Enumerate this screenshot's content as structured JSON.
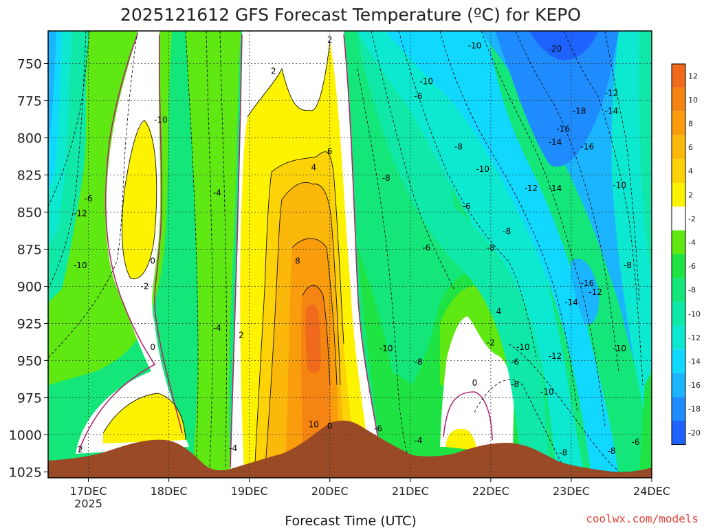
{
  "chart_data": {
    "type": "heatmap",
    "title": "2025121612 GFS Forecast Temperature (ºC) for KEPO",
    "xlabel": "Forecast Time (UTC)",
    "ylabel": "",
    "x_ticks": [
      "17DEC",
      "18DEC",
      "19DEC",
      "20DEC",
      "21DEC",
      "22DEC",
      "23DEC",
      "24DEC"
    ],
    "x_year": "2025",
    "xlim_days": [
      16.5,
      24.0
    ],
    "y_ticks": [
      750,
      775,
      800,
      825,
      850,
      875,
      900,
      925,
      950,
      975,
      1000,
      1025
    ],
    "ylim": [
      728,
      1029
    ],
    "colorbar": {
      "levels": [
        12,
        10,
        8,
        6,
        4,
        2,
        -2,
        -4,
        -6,
        -8,
        -10,
        -12,
        -14,
        -16,
        -18,
        -20
      ],
      "colors": [
        "#ef6a1c",
        "#f58412",
        "#fa9d0c",
        "#fcb80a",
        "#fdd307",
        "#fdf200",
        "#ffffff",
        "#5fe812",
        "#1fe342",
        "#14e67a",
        "#10e8a8",
        "#0de8d0",
        "#10d8ff",
        "#1bb4ff",
        "#1e8cff",
        "#1f63ff"
      ]
    },
    "contour_labels": [
      {
        "value": "2",
        "day": 20.0,
        "p": 734
      },
      {
        "value": "-10",
        "day": 21.8,
        "p": 738
      },
      {
        "value": "-20",
        "day": 22.8,
        "p": 740
      },
      {
        "value": "2",
        "day": 19.3,
        "p": 755
      },
      {
        "value": "-10",
        "day": 21.2,
        "p": 762
      },
      {
        "value": "-6",
        "day": 21.1,
        "p": 772
      },
      {
        "value": "-12",
        "day": 23.5,
        "p": 770
      },
      {
        "value": "-18",
        "day": 23.1,
        "p": 782
      },
      {
        "value": "-14",
        "day": 23.5,
        "p": 782
      },
      {
        "value": "-10",
        "day": 17.9,
        "p": 788
      },
      {
        "value": "-16",
        "day": 22.9,
        "p": 794
      },
      {
        "value": "-14",
        "day": 22.8,
        "p": 803
      },
      {
        "value": "-8",
        "day": 21.6,
        "p": 806
      },
      {
        "value": "-16",
        "day": 23.2,
        "p": 806
      },
      {
        "value": "6",
        "day": 20.0,
        "p": 809
      },
      {
        "value": "4",
        "day": 19.8,
        "p": 820
      },
      {
        "value": "-10",
        "day": 21.9,
        "p": 821
      },
      {
        "value": "-8",
        "day": 20.7,
        "p": 827
      },
      {
        "value": "-10",
        "day": 23.6,
        "p": 832
      },
      {
        "value": "-12",
        "day": 22.5,
        "p": 834
      },
      {
        "value": "-14",
        "day": 22.8,
        "p": 834
      },
      {
        "value": "-4",
        "day": 18.6,
        "p": 837
      },
      {
        "value": "-6",
        "day": 17.0,
        "p": 841
      },
      {
        "value": "-6",
        "day": 21.7,
        "p": 846
      },
      {
        "value": "-12",
        "day": 16.9,
        "p": 851
      },
      {
        "value": "-8",
        "day": 22.2,
        "p": 863
      },
      {
        "value": "-6",
        "day": 21.2,
        "p": 874
      },
      {
        "value": "-8",
        "day": 22.0,
        "p": 874
      },
      {
        "value": "8",
        "day": 19.6,
        "p": 883
      },
      {
        "value": "0",
        "day": 17.8,
        "p": 883
      },
      {
        "value": "-10",
        "day": 16.9,
        "p": 886
      },
      {
        "value": "-8",
        "day": 23.7,
        "p": 886
      },
      {
        "value": "-2",
        "day": 17.7,
        "p": 900
      },
      {
        "value": "-16",
        "day": 23.2,
        "p": 898
      },
      {
        "value": "-12",
        "day": 23.3,
        "p": 904
      },
      {
        "value": "-14",
        "day": 23.0,
        "p": 911
      },
      {
        "value": "4",
        "day": 22.1,
        "p": 917
      },
      {
        "value": "-4",
        "day": 18.6,
        "p": 928
      },
      {
        "value": "2",
        "day": 18.9,
        "p": 933
      },
      {
        "value": "-2",
        "day": 22.0,
        "p": 938
      },
      {
        "value": "0",
        "day": 17.8,
        "p": 941
      },
      {
        "value": "-10",
        "day": 20.7,
        "p": 942
      },
      {
        "value": "-10",
        "day": 22.4,
        "p": 941
      },
      {
        "value": "-10",
        "day": 23.6,
        "p": 942
      },
      {
        "value": "-12",
        "day": 22.8,
        "p": 947
      },
      {
        "value": "-8",
        "day": 21.1,
        "p": 951
      },
      {
        "value": "-6",
        "day": 22.3,
        "p": 951
      },
      {
        "value": "0",
        "day": 21.8,
        "p": 965
      },
      {
        "value": "-8",
        "day": 22.3,
        "p": 966
      },
      {
        "value": "-10",
        "day": 22.7,
        "p": 971
      },
      {
        "value": "10",
        "day": 19.8,
        "p": 993
      },
      {
        "value": "0",
        "day": 20.0,
        "p": 994
      },
      {
        "value": "-6",
        "day": 20.6,
        "p": 996
      },
      {
        "value": "-4",
        "day": 21.1,
        "p": 1004
      },
      {
        "value": "2",
        "day": 16.9,
        "p": 1010
      },
      {
        "value": "-4",
        "day": 18.8,
        "p": 1009
      },
      {
        "value": "-6",
        "day": 23.8,
        "p": 1005
      },
      {
        "value": "-8",
        "day": 22.9,
        "p": 1012
      },
      {
        "value": "-8",
        "day": 23.5,
        "p": 1011
      }
    ]
  },
  "credit": "coolwx.com/models",
  "colors": {
    "ground": "#9b4a26",
    "frame": "#000000",
    "contour_freezing": "#b0276e"
  }
}
